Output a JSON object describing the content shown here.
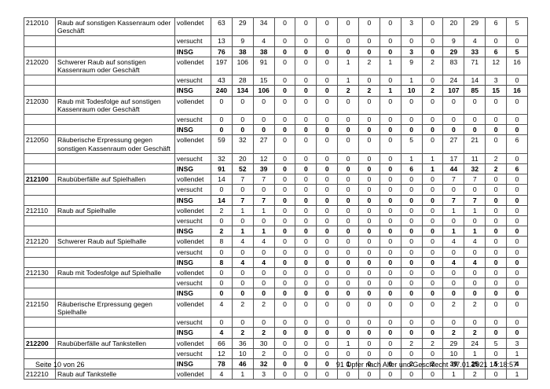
{
  "table": {
    "rows": [
      {
        "code": "212010",
        "text": "Raub auf sonstigen Kassenraum oder Geschäft",
        "status": "vollendet",
        "values": [
          63,
          29,
          34,
          0,
          0,
          0,
          0,
          0,
          0,
          3,
          0,
          20,
          29,
          6,
          5
        ]
      },
      {
        "status": "versucht",
        "values": [
          13,
          9,
          4,
          0,
          0,
          0,
          0,
          0,
          0,
          0,
          0,
          9,
          4,
          0,
          0
        ]
      },
      {
        "status": "INSG",
        "bold": true,
        "values": [
          76,
          38,
          38,
          0,
          0,
          0,
          0,
          0,
          0,
          3,
          0,
          29,
          33,
          6,
          5
        ]
      },
      {
        "code": "212020",
        "text": "Schwerer Raub auf sonstigen Kassenraum oder Geschäft",
        "status": "vollendet",
        "values": [
          197,
          106,
          91,
          0,
          0,
          0,
          1,
          2,
          1,
          9,
          2,
          83,
          71,
          12,
          16
        ]
      },
      {
        "status": "versucht",
        "values": [
          43,
          28,
          15,
          0,
          0,
          0,
          1,
          0,
          0,
          1,
          0,
          24,
          14,
          3,
          0
        ]
      },
      {
        "status": "INSG",
        "bold": true,
        "values": [
          240,
          134,
          106,
          0,
          0,
          0,
          2,
          2,
          1,
          10,
          2,
          107,
          85,
          15,
          16
        ]
      },
      {
        "code": "212030",
        "text": "Raub mit Todesfolge auf sonstigen Kassenraum oder Geschäft",
        "status": "vollendet",
        "values": [
          0,
          0,
          0,
          0,
          0,
          0,
          0,
          0,
          0,
          0,
          0,
          0,
          0,
          0,
          0
        ]
      },
      {
        "status": "versucht",
        "values": [
          0,
          0,
          0,
          0,
          0,
          0,
          0,
          0,
          0,
          0,
          0,
          0,
          0,
          0,
          0
        ]
      },
      {
        "status": "INSG",
        "bold": true,
        "values": [
          0,
          0,
          0,
          0,
          0,
          0,
          0,
          0,
          0,
          0,
          0,
          0,
          0,
          0,
          0
        ]
      },
      {
        "code": "212050",
        "text": "Räuberische Erpressung gegen sonstigen Kassenraum oder Geschäft",
        "status": "vollendet",
        "values": [
          59,
          32,
          27,
          0,
          0,
          0,
          0,
          0,
          0,
          5,
          0,
          27,
          21,
          0,
          6
        ]
      },
      {
        "status": "versucht",
        "values": [
          32,
          20,
          12,
          0,
          0,
          0,
          0,
          0,
          0,
          1,
          1,
          17,
          11,
          2,
          0
        ]
      },
      {
        "status": "INSG",
        "bold": true,
        "values": [
          91,
          52,
          39,
          0,
          0,
          0,
          0,
          0,
          0,
          6,
          1,
          44,
          32,
          2,
          6
        ]
      },
      {
        "code": "212100",
        "code_bold": true,
        "text": "Raubüberfälle auf Spielhallen",
        "status": "vollendet",
        "values": [
          14,
          7,
          7,
          0,
          0,
          0,
          0,
          0,
          0,
          0,
          0,
          7,
          7,
          0,
          0
        ]
      },
      {
        "status": "versucht",
        "values": [
          0,
          0,
          0,
          0,
          0,
          0,
          0,
          0,
          0,
          0,
          0,
          0,
          0,
          0,
          0
        ]
      },
      {
        "status": "INSG",
        "bold": true,
        "values": [
          14,
          7,
          7,
          0,
          0,
          0,
          0,
          0,
          0,
          0,
          0,
          7,
          7,
          0,
          0
        ]
      },
      {
        "code": "212110",
        "text": "Raub auf Spielhalle",
        "status": "vollendet",
        "values": [
          2,
          1,
          1,
          0,
          0,
          0,
          0,
          0,
          0,
          0,
          0,
          1,
          1,
          0,
          0
        ]
      },
      {
        "status": "versucht",
        "values": [
          0,
          0,
          0,
          0,
          0,
          0,
          0,
          0,
          0,
          0,
          0,
          0,
          0,
          0,
          0
        ]
      },
      {
        "status": "INSG",
        "bold": true,
        "values": [
          2,
          1,
          1,
          0,
          0,
          0,
          0,
          0,
          0,
          0,
          0,
          1,
          1,
          0,
          0
        ]
      },
      {
        "code": "212120",
        "text": "Schwerer Raub auf Spielhalle",
        "status": "vollendet",
        "values": [
          8,
          4,
          4,
          0,
          0,
          0,
          0,
          0,
          0,
          0,
          0,
          4,
          4,
          0,
          0
        ]
      },
      {
        "status": "versucht",
        "values": [
          0,
          0,
          0,
          0,
          0,
          0,
          0,
          0,
          0,
          0,
          0,
          0,
          0,
          0,
          0
        ]
      },
      {
        "status": "INSG",
        "bold": true,
        "values": [
          8,
          4,
          4,
          0,
          0,
          0,
          0,
          0,
          0,
          0,
          0,
          4,
          4,
          0,
          0
        ]
      },
      {
        "code": "212130",
        "text": "Raub mit Todesfolge auf Spielhalle",
        "status": "vollendet",
        "values": [
          0,
          0,
          0,
          0,
          0,
          0,
          0,
          0,
          0,
          0,
          0,
          0,
          0,
          0,
          0
        ]
      },
      {
        "status": "versucht",
        "values": [
          0,
          0,
          0,
          0,
          0,
          0,
          0,
          0,
          0,
          0,
          0,
          0,
          0,
          0,
          0
        ]
      },
      {
        "status": "INSG",
        "bold": true,
        "values": [
          0,
          0,
          0,
          0,
          0,
          0,
          0,
          0,
          0,
          0,
          0,
          0,
          0,
          0,
          0
        ]
      },
      {
        "code": "212150",
        "text": "Räuberische Erpressung gegen Spielhalle",
        "status": "vollendet",
        "values": [
          4,
          2,
          2,
          0,
          0,
          0,
          0,
          0,
          0,
          0,
          0,
          2,
          2,
          0,
          0
        ]
      },
      {
        "status": "versucht",
        "values": [
          0,
          0,
          0,
          0,
          0,
          0,
          0,
          0,
          0,
          0,
          0,
          0,
          0,
          0,
          0
        ]
      },
      {
        "status": "INSG",
        "bold": true,
        "values": [
          4,
          2,
          2,
          0,
          0,
          0,
          0,
          0,
          0,
          0,
          0,
          2,
          2,
          0,
          0
        ]
      },
      {
        "code": "212200",
        "code_bold": true,
        "text": "Raubüberfälle auf Tankstellen",
        "status": "vollendet",
        "values": [
          66,
          36,
          30,
          0,
          0,
          0,
          1,
          0,
          0,
          2,
          2,
          29,
          24,
          5,
          3
        ]
      },
      {
        "status": "versucht",
        "values": [
          12,
          10,
          2,
          0,
          0,
          0,
          0,
          0,
          0,
          0,
          0,
          10,
          1,
          0,
          1
        ]
      },
      {
        "status": "INSG",
        "bold": true,
        "values": [
          78,
          46,
          32,
          0,
          0,
          0,
          1,
          0,
          0,
          2,
          2,
          39,
          25,
          5,
          4
        ]
      },
      {
        "code": "212210",
        "text": "Raub auf Tankstelle",
        "status": "vollendet",
        "values": [
          4,
          1,
          3,
          0,
          0,
          0,
          0,
          0,
          0,
          0,
          0,
          1,
          2,
          0,
          1
        ]
      }
    ]
  },
  "footer": {
    "page": "Seite 10 von 26",
    "info": "91 Opfer nach Alter und Geschlecht  07.01.2021 14:18:57"
  }
}
